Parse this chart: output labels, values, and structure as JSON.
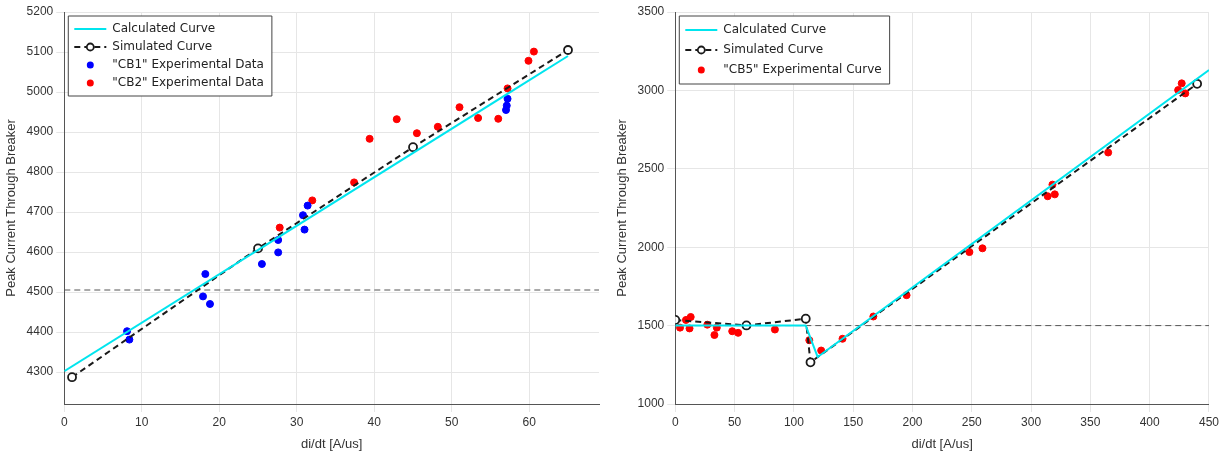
{
  "chart_data": [
    {
      "type": "scatter",
      "xlabel": "di/dt [A/us]",
      "ylabel": "Peak Current Through Breaker",
      "xlim": [
        0,
        69
      ],
      "xticks": [
        0,
        10,
        20,
        30,
        40,
        50,
        60
      ],
      "ylim": [
        4220,
        5200
      ],
      "yticks": [
        4300,
        4400,
        4500,
        4600,
        4700,
        4800,
        4900,
        5000,
        5100,
        5200
      ],
      "grid": true,
      "legend": "top left",
      "ref_lines": [
        {
          "axis": "y",
          "value": 4505,
          "color": "#555555",
          "line_style": "dashed"
        }
      ],
      "series": [
        {
          "name": "Calculated Curve",
          "type": "line",
          "color": "#00e5ee",
          "marker": "none",
          "line_style": "solid",
          "x": [
            0,
            65
          ],
          "values": [
            4302,
            5090
          ]
        },
        {
          "name": "Simulated Curve",
          "type": "line",
          "color": "#1a1a1a",
          "marker": "circle",
          "line_style": "dashed",
          "x": [
            1,
            25,
            45,
            65
          ],
          "values": [
            4287,
            4609,
            4862,
            5105
          ]
        },
        {
          "name": "\"CB1\" Experimental Data",
          "type": "scatter",
          "color": "#0000ff",
          "marker": "circle",
          "x": [
            8.1,
            8.4,
            17.9,
            18.2,
            18.8,
            25.5,
            27.6,
            27.6,
            30.8,
            31,
            31.4,
            57,
            57.1,
            57.2
          ],
          "values": [
            4402,
            4381,
            4489,
            4545,
            4470,
            4570,
            4630,
            4599,
            4692,
            4656,
            4716,
            4955,
            4966,
            4983
          ]
        },
        {
          "name": "\"CB2\" Experimental Data",
          "type": "scatter",
          "color": "#ff0000",
          "marker": "circle",
          "x": [
            27.8,
            32,
            37.4,
            39.4,
            42.9,
            45.5,
            48.2,
            51,
            53.4,
            56,
            57.2,
            59.9,
            60.6
          ],
          "values": [
            4661,
            4729,
            4774,
            4883,
            4932,
            4897,
            4913,
            4962,
            4935,
            4933,
            5009,
            5078,
            5101
          ]
        }
      ]
    },
    {
      "type": "scatter",
      "xlabel": "di/dt [A/us]",
      "ylabel": "Peak Current Through Breaker",
      "xlim": [
        0,
        450
      ],
      "xticks": [
        0,
        50,
        100,
        150,
        200,
        250,
        300,
        350,
        400,
        450
      ],
      "ylim": [
        1000,
        3500
      ],
      "yticks": [
        1000,
        1500,
        2000,
        2500,
        3000,
        3500
      ],
      "grid": true,
      "legend": "top left",
      "ref_lines": [
        {
          "axis": "y",
          "value": 1500,
          "color": "#555555",
          "line_style": "dashed"
        }
      ],
      "series": [
        {
          "name": "Calculated Curve",
          "type": "line",
          "color": "#00e5ee",
          "marker": "none",
          "line_style": "solid",
          "x": [
            0,
            110,
            120,
            450
          ],
          "values": [
            1500,
            1500,
            1300,
            3130
          ]
        },
        {
          "name": "Simulated Curve",
          "type": "line",
          "color": "#1a1a1a",
          "marker": "circle",
          "line_style": "dashed",
          "x": [
            0,
            60,
            110,
            114,
            440
          ],
          "values": [
            1536,
            1501,
            1544,
            1266,
            3042
          ]
        },
        {
          "name": "\"CB5\" Experimental Curve",
          "type": "scatter",
          "color": "#ff0000",
          "marker": "circle",
          "x": [
            4,
            9,
            12,
            13,
            27,
            33,
            35,
            48,
            53,
            84,
            113,
            123,
            141,
            167,
            195,
            248,
            259,
            314,
            318,
            320,
            365,
            424,
            427,
            430
          ],
          "values": [
            1487,
            1536,
            1482,
            1555,
            1506,
            1440,
            1487,
            1464,
            1454,
            1475,
            1407,
            1341,
            1416,
            1558,
            1694,
            1969,
            1993,
            2325,
            2399,
            2337,
            2604,
            3002,
            3045,
            2981
          ]
        }
      ]
    }
  ]
}
